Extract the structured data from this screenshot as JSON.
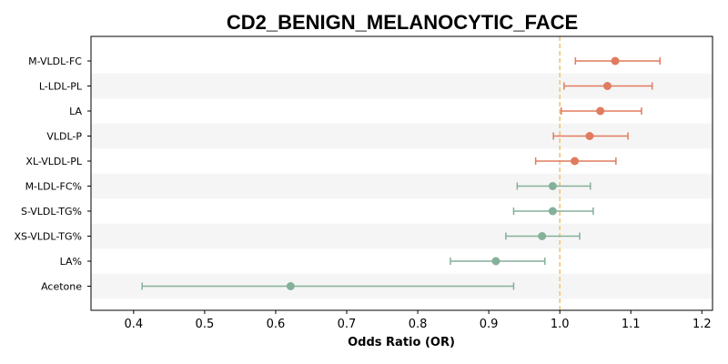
{
  "chart_data": {
    "type": "forest",
    "title": "CD2_BENIGN_MELANOCYTIC_FACE",
    "xlabel": "Odds Ratio (OR)",
    "xlim": [
      0.34,
      1.215
    ],
    "xticks": [
      "0.4",
      "0.5",
      "0.6",
      "0.7",
      "0.8",
      "0.9",
      "1.0",
      "1.1",
      "1.2"
    ],
    "reference_line": 1.0,
    "rows": [
      {
        "label": "M-VLDL-FC",
        "or": 1.078,
        "lo": 1.022,
        "hi": 1.141,
        "direction": "positive"
      },
      {
        "label": "L-LDL-PL",
        "or": 1.067,
        "lo": 1.006,
        "hi": 1.13,
        "direction": "positive"
      },
      {
        "label": "LA",
        "or": 1.057,
        "lo": 1.002,
        "hi": 1.115,
        "direction": "positive"
      },
      {
        "label": "VLDL-P",
        "or": 1.042,
        "lo": 0.991,
        "hi": 1.096,
        "direction": "positive"
      },
      {
        "label": "XL-VLDL-PL",
        "or": 1.021,
        "lo": 0.966,
        "hi": 1.079,
        "direction": "positive"
      },
      {
        "label": "M-LDL-FC%",
        "or": 0.99,
        "lo": 0.94,
        "hi": 1.043,
        "direction": "negative"
      },
      {
        "label": "S-VLDL-TG%",
        "or": 0.99,
        "lo": 0.935,
        "hi": 1.047,
        "direction": "negative"
      },
      {
        "label": "XS-VLDL-TG%",
        "or": 0.975,
        "lo": 0.924,
        "hi": 1.028,
        "direction": "negative"
      },
      {
        "label": "LA%",
        "or": 0.91,
        "lo": 0.846,
        "hi": 0.979,
        "direction": "negative"
      },
      {
        "label": "Acetone",
        "or": 0.621,
        "lo": 0.412,
        "hi": 0.935,
        "direction": "negative"
      }
    ],
    "colors": {
      "positive": "#E07B5F",
      "negative": "#85B09A",
      "reference_line": "#F2C679",
      "band": "#F5F5F5"
    }
  }
}
